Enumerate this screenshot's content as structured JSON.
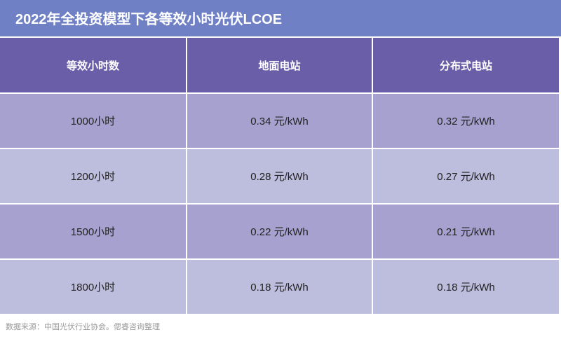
{
  "header": {
    "title": "2022年全投资模型下各等效小时光伏LCOE"
  },
  "table": {
    "columns": [
      "等效小时数",
      "地面电站",
      "分布式电站"
    ],
    "rows": [
      [
        "1000小时",
        "0.34 元/kWh",
        "0.32 元/kWh"
      ],
      [
        "1200小时",
        "0.28 元/kWh",
        "0.27 元/kWh"
      ],
      [
        "1500小时",
        "0.22 元/kWh",
        "0.21 元/kWh"
      ],
      [
        "1800小时",
        "0.18 元/kWh",
        "0.18 元/kWh"
      ]
    ]
  },
  "footer": {
    "source": "数据来源：中国光伏行业协会。偲睿咨询整理"
  }
}
